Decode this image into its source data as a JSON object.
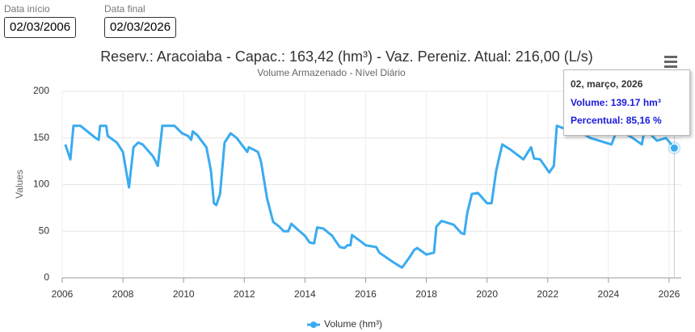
{
  "form": {
    "start_label": "Data início",
    "start_value": "02/03/2006",
    "end_label": "Data final",
    "end_value": "02/03/2026"
  },
  "tooltip": {
    "date": "02, março, 2026",
    "volume": "Volume: 139.17 hm³",
    "percent": "Percentual: 85,16 %"
  },
  "chart_data": {
    "type": "line",
    "title": "Reserv.: Aracoiaba - Capac.: 163,42 (hm³) - Vaz. Pereniz. Atual: 216,00 (L/s)",
    "subtitle": "Volume Armazenado - Nível Diário",
    "y_label": "Values",
    "x": [
      2006.1,
      2006.27,
      2006.37,
      2006.6,
      2007.1,
      2007.2,
      2007.25,
      2007.45,
      2007.5,
      2007.8,
      2008.0,
      2008.2,
      2008.35,
      2008.5,
      2008.65,
      2009.0,
      2009.15,
      2009.3,
      2009.7,
      2009.95,
      2010.15,
      2010.25,
      2010.3,
      2010.45,
      2010.75,
      2010.9,
      2011.0,
      2011.08,
      2011.2,
      2011.35,
      2011.55,
      2011.75,
      2012.1,
      2012.15,
      2012.45,
      2012.55,
      2012.75,
      2012.95,
      2013.15,
      2013.3,
      2013.45,
      2013.55,
      2013.75,
      2014.0,
      2014.15,
      2014.3,
      2014.4,
      2014.6,
      2014.9,
      2015.0,
      2015.15,
      2015.3,
      2015.4,
      2015.5,
      2015.55,
      2015.8,
      2016.0,
      2016.35,
      2016.45,
      2016.9,
      2017.2,
      2017.4,
      2017.6,
      2017.7,
      2018.0,
      2018.25,
      2018.33,
      2018.5,
      2018.9,
      2019.15,
      2019.25,
      2019.35,
      2019.5,
      2019.7,
      2020.0,
      2020.15,
      2020.3,
      2020.5,
      2020.75,
      2021.2,
      2021.35,
      2021.45,
      2021.55,
      2021.75,
      2022.05,
      2022.2,
      2022.3,
      2022.55,
      2023.0,
      2023.4,
      2024.1,
      2024.3,
      2024.8,
      2025.1,
      2025.2,
      2025.6,
      2025.9,
      2026.17
    ],
    "series": [
      {
        "name": "Volume (hm³)",
        "color": "#3aabf0",
        "values": [
          143,
          127,
          163,
          163,
          150,
          148,
          163,
          163,
          152,
          145,
          135,
          97,
          140,
          145,
          143,
          130,
          120,
          163,
          163,
          155,
          152,
          148,
          157,
          153,
          140,
          115,
          80,
          78,
          90,
          145,
          155,
          150,
          135,
          140,
          135,
          125,
          85,
          60,
          55,
          50,
          50,
          58,
          52,
          45,
          38,
          37,
          54,
          53,
          45,
          40,
          33,
          32,
          35,
          35,
          46,
          40,
          35,
          33,
          27,
          17,
          11,
          20,
          30,
          32,
          25,
          27,
          55,
          61,
          57,
          48,
          47,
          70,
          90,
          91,
          80,
          80,
          115,
          143,
          138,
          127,
          135,
          140,
          128,
          127,
          113,
          120,
          163,
          160,
          158,
          150,
          143,
          160,
          150,
          143,
          160,
          147,
          150,
          139.17
        ]
      }
    ],
    "xlim": [
      2006,
      2026.4
    ],
    "xticks": [
      2006,
      2008,
      2010,
      2012,
      2014,
      2016,
      2018,
      2020,
      2022,
      2024,
      2026
    ],
    "ylim": [
      0,
      200
    ],
    "yticks": [
      0,
      50,
      100,
      150,
      200
    ],
    "grid": true
  }
}
